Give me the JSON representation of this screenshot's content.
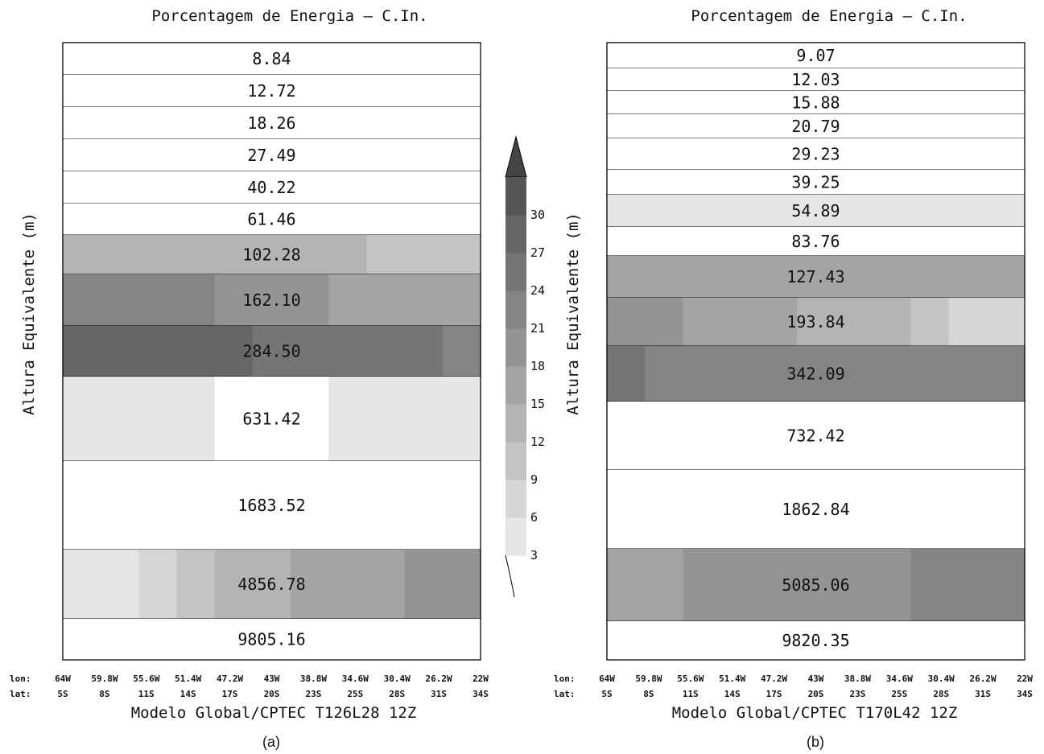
{
  "colorbar": {
    "ticks": [
      "3",
      "6",
      "9",
      "12",
      "15",
      "18",
      "21",
      "24",
      "27",
      "30"
    ],
    "colors": [
      "#e6e6e6",
      "#d6d6d6",
      "#c4c4c4",
      "#b4b4b4",
      "#a4a4a4",
      "#949494",
      "#848484",
      "#757575",
      "#666666",
      "#555555"
    ]
  },
  "chart_data": [
    {
      "type": "heatmap",
      "title": "Porcentagem de Energia — C.In.",
      "ylabel": "Altura Equivalente (m)",
      "xlabel": "Modelo Global/CPTEC T126L28 12Z",
      "caption": "(a)",
      "lon_ticks": [
        "64W",
        "59.8W",
        "55.6W",
        "51.4W",
        "47.2W",
        "43W",
        "38.8W",
        "34.6W",
        "30.4W",
        "26.2W",
        "22W"
      ],
      "lat_ticks": [
        "5S",
        "8S",
        "11S",
        "14S",
        "17S",
        "20S",
        "23S",
        "25S",
        "28S",
        "31S",
        "34S"
      ],
      "lon_label": "lon:",
      "lat_label": "lat:",
      "rows": [
        {
          "label": "8.84",
          "values": [
            0,
            0,
            0,
            0,
            0,
            0,
            0,
            0,
            0,
            0,
            0
          ]
        },
        {
          "label": "12.72",
          "values": [
            0,
            0,
            0,
            0,
            0,
            0,
            0,
            0,
            0,
            0,
            0
          ]
        },
        {
          "label": "18.26",
          "values": [
            0,
            0,
            0,
            0,
            0,
            0,
            0,
            0,
            0,
            0,
            0
          ]
        },
        {
          "label": "27.49",
          "values": [
            0,
            0,
            0,
            0,
            0,
            0,
            0,
            0,
            0,
            0,
            0
          ]
        },
        {
          "label": "40.22",
          "values": [
            0,
            0,
            0,
            0,
            0,
            0,
            0,
            0,
            0,
            0,
            0
          ]
        },
        {
          "label": "61.46",
          "values": [
            2,
            2,
            2,
            2,
            2,
            2,
            2,
            2,
            2,
            2,
            2
          ]
        },
        {
          "label": "102.28",
          "values": [
            14,
            14,
            13,
            13,
            13,
            13,
            12,
            12,
            11,
            11,
            10
          ]
        },
        {
          "label": "162.10",
          "values": [
            23,
            23,
            22,
            21,
            20,
            19,
            18,
            17,
            16,
            15,
            15
          ]
        },
        {
          "label": "284.50",
          "values": [
            29,
            29,
            28,
            27,
            27,
            26,
            26,
            25,
            24,
            24,
            23
          ]
        },
        {
          "label": "631.42",
          "values": [
            4,
            4,
            4,
            4,
            1,
            1,
            1,
            4,
            4,
            4,
            4
          ]
        },
        {
          "label": "1683.52",
          "values": [
            0,
            0,
            0,
            0,
            0,
            0,
            0,
            0,
            0,
            0,
            0
          ]
        },
        {
          "label": "4856.78",
          "values": [
            4,
            5,
            8,
            10,
            12,
            13,
            15,
            16,
            17,
            18,
            19
          ]
        },
        {
          "label": "9805.16",
          "values": [
            0,
            0,
            0,
            0,
            0,
            0,
            0,
            0,
            0,
            0,
            0
          ]
        }
      ]
    },
    {
      "type": "heatmap",
      "title": "Porcentagem de Energia — C.In.",
      "ylabel": "Altura Equivalente (m)",
      "xlabel": "Modelo Global/CPTEC T170L42 12Z",
      "caption": "(b)",
      "lon_ticks": [
        "64W",
        "59.8W",
        "55.6W",
        "51.4W",
        "47.2W",
        "43W",
        "38.8W",
        "34.6W",
        "30.4W",
        "26.2W",
        "22W"
      ],
      "lat_ticks": [
        "5S",
        "8S",
        "11S",
        "14S",
        "17S",
        "20S",
        "23S",
        "25S",
        "28S",
        "31S",
        "34S"
      ],
      "lon_label": "lon:",
      "lat_label": "lat:",
      "rows": [
        {
          "label": "9.07",
          "values": [
            0,
            0,
            0,
            0,
            0,
            0,
            0,
            0,
            0,
            0,
            0
          ]
        },
        {
          "label": "12.03",
          "values": [
            0,
            0,
            0,
            0,
            0,
            0,
            0,
            0,
            0,
            0,
            0
          ]
        },
        {
          "label": "15.88",
          "values": [
            0,
            0,
            0,
            0,
            0,
            0,
            0,
            0,
            0,
            0,
            0
          ]
        },
        {
          "label": "20.79",
          "values": [
            0,
            0,
            0,
            0,
            0,
            0,
            0,
            0,
            0,
            0,
            0
          ]
        },
        {
          "label": "29.23",
          "values": [
            0,
            0,
            0,
            0,
            0,
            0,
            0,
            0,
            0,
            0,
            0
          ]
        },
        {
          "label": "39.25",
          "values": [
            0,
            0,
            0,
            0,
            0,
            0,
            0,
            0,
            0,
            0,
            0
          ]
        },
        {
          "label": "54.89",
          "values": [
            4,
            4,
            4,
            4,
            4,
            4,
            4,
            4,
            4,
            4,
            4
          ]
        },
        {
          "label": "83.76",
          "values": [
            0,
            0,
            0,
            0,
            0,
            0,
            0,
            0,
            0,
            0,
            0
          ]
        },
        {
          "label": "127.43",
          "values": [
            17,
            17,
            17,
            17,
            17,
            16,
            16,
            16,
            16,
            16,
            16
          ]
        },
        {
          "label": "193.84",
          "values": [
            19,
            18,
            17,
            16,
            15,
            14,
            13,
            12,
            11,
            8,
            7
          ]
        },
        {
          "label": "342.09",
          "values": [
            24,
            23,
            23,
            22,
            22,
            21,
            22,
            23,
            23,
            22,
            21
          ]
        },
        {
          "label": "732.42",
          "values": [
            0,
            0,
            0,
            0,
            0,
            0,
            0,
            0,
            0,
            0,
            0
          ]
        },
        {
          "label": "1862.84",
          "values": [
            0,
            0,
            0,
            0,
            0,
            0,
            0,
            0,
            0,
            0,
            0
          ]
        },
        {
          "label": "5085.06",
          "values": [
            16,
            17,
            18,
            19,
            19,
            20,
            20,
            20,
            21,
            21,
            21
          ]
        },
        {
          "label": "9820.35",
          "values": [
            0,
            0,
            0,
            0,
            0,
            0,
            0,
            0,
            0,
            0,
            0
          ]
        }
      ]
    }
  ]
}
